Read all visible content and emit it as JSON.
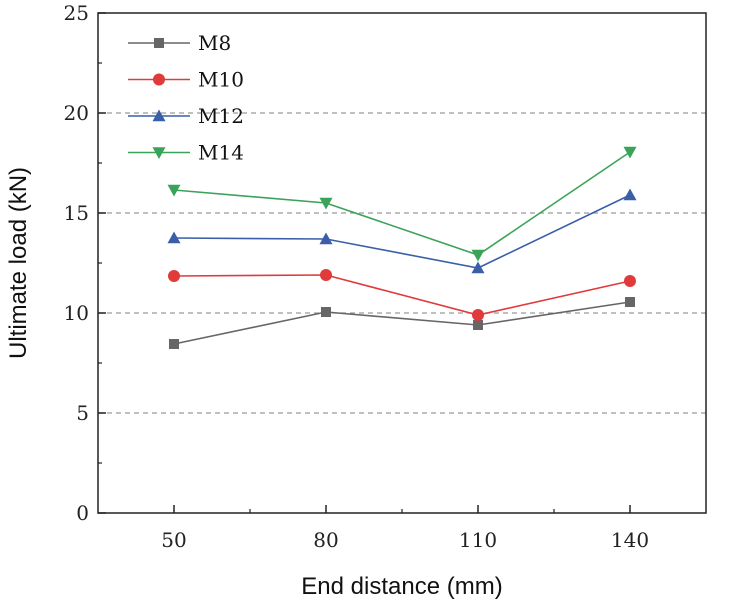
{
  "chart_data": {
    "type": "line",
    "xlabel": "End distance (mm)",
    "ylabel": "Ultimate load (kN)",
    "x": [
      50,
      80,
      110,
      140
    ],
    "xticks": [
      50,
      80,
      110,
      140
    ],
    "xlim": [
      35,
      155
    ],
    "ylim": [
      0,
      25
    ],
    "yticks": [
      0,
      5,
      10,
      15,
      20,
      25
    ],
    "grid": "horizontal dashed at 5, 10, 15, 20",
    "legend": "top-left",
    "series": [
      {
        "name": "M8",
        "color": "#666666",
        "marker": "square",
        "values": [
          8.45,
          10.05,
          9.4,
          10.55
        ]
      },
      {
        "name": "M10",
        "color": "#e03a3a",
        "marker": "circle",
        "values": [
          11.85,
          11.9,
          9.9,
          11.6
        ]
      },
      {
        "name": "M12",
        "color": "#3a5fa8",
        "marker": "triangle-up",
        "values": [
          13.75,
          13.7,
          12.25,
          15.9
        ]
      },
      {
        "name": "M14",
        "color": "#3aa35a",
        "marker": "triangle-down",
        "values": [
          16.15,
          15.5,
          12.9,
          18.05
        ]
      }
    ]
  }
}
